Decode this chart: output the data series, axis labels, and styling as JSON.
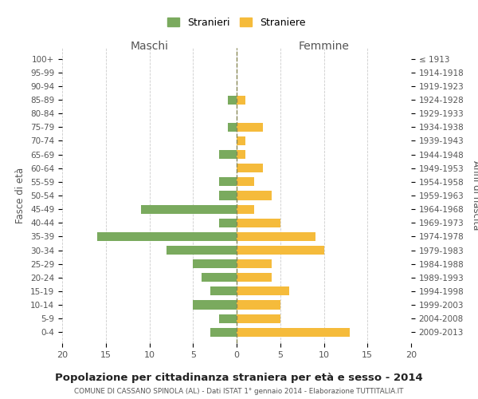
{
  "age_groups": [
    "0-4",
    "5-9",
    "10-14",
    "15-19",
    "20-24",
    "25-29",
    "30-34",
    "35-39",
    "40-44",
    "45-49",
    "50-54",
    "55-59",
    "60-64",
    "65-69",
    "70-74",
    "75-79",
    "80-84",
    "85-89",
    "90-94",
    "95-99",
    "100+"
  ],
  "birth_years": [
    "2009-2013",
    "2004-2008",
    "1999-2003",
    "1994-1998",
    "1989-1993",
    "1984-1988",
    "1979-1983",
    "1974-1978",
    "1969-1973",
    "1964-1968",
    "1959-1963",
    "1954-1958",
    "1949-1953",
    "1944-1948",
    "1939-1943",
    "1934-1938",
    "1929-1933",
    "1924-1928",
    "1919-1923",
    "1914-1918",
    "≤ 1913"
  ],
  "maschi": [
    3,
    2,
    5,
    3,
    4,
    5,
    8,
    16,
    2,
    11,
    2,
    2,
    0,
    2,
    0,
    1,
    0,
    1,
    0,
    0,
    0
  ],
  "femmine": [
    13,
    5,
    5,
    6,
    4,
    4,
    10,
    9,
    5,
    2,
    4,
    2,
    3,
    1,
    1,
    3,
    0,
    1,
    0,
    0,
    0
  ],
  "maschi_color": "#7aaa5e",
  "femmine_color": "#f5bb3b",
  "background_color": "#ffffff",
  "grid_color": "#cccccc",
  "title": "Popolazione per cittadinanza straniera per età e sesso - 2014",
  "subtitle": "COMUNE DI CASSANO SPINOLA (AL) - Dati ISTAT 1° gennaio 2014 - Elaborazione TUTTITALIA.IT",
  "xlabel_left": "Maschi",
  "xlabel_right": "Femmine",
  "ylabel_left": "Fasce di età",
  "ylabel_right": "Anni di nascita",
  "xlim": 20,
  "legend_maschi": "Stranieri",
  "legend_femmine": "Straniere",
  "dashed_line_color": "#888855"
}
